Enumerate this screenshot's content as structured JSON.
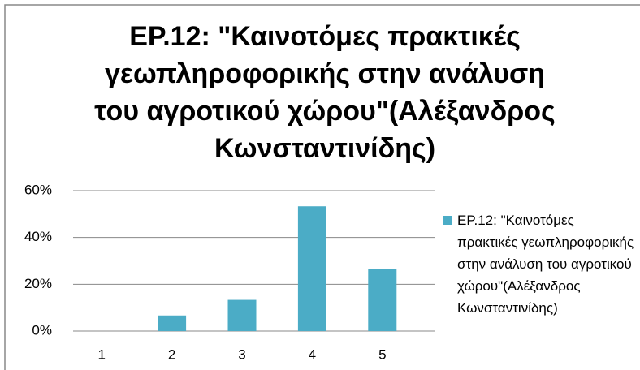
{
  "chart_data": {
    "type": "bar",
    "title": "ΕΡ.12: \"Καινοτόμες πρακτικές γεωπληροφορικής στην ανάλυση του αγροτικού χώρου\"(Αλέξανδρος Κωνσταντινίδης)",
    "categories": [
      "1",
      "2",
      "3",
      "4",
      "5"
    ],
    "series": [
      {
        "name": "ΕΡ.12: \"Καινοτόμες πρακτικές γεωπληροφορικής στην ανάλυση του αγροτικού χώρου\"(Αλέξανδρος Κωνσταντινίδης)",
        "color": "#4bacc6",
        "values": [
          0,
          6.67,
          13.33,
          53.33,
          26.67
        ]
      }
    ],
    "ylim": [
      0,
      60
    ],
    "yticks": [
      {
        "value": 0,
        "label": "0%"
      },
      {
        "value": 20,
        "label": "20%"
      },
      {
        "value": 40,
        "label": "40%"
      },
      {
        "value": 60,
        "label": "60%"
      }
    ],
    "grid": true,
    "legend": "right"
  }
}
